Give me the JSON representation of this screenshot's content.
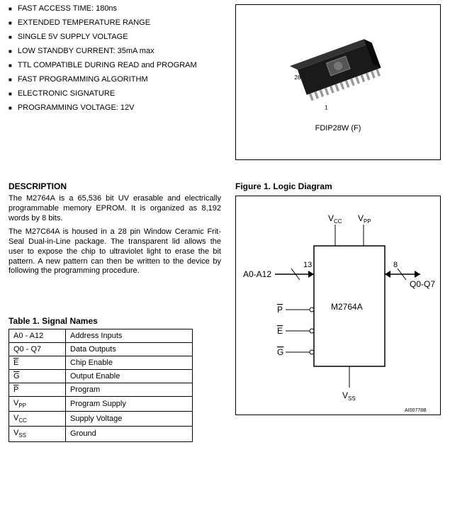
{
  "features": [
    "FAST ACCESS TIME: 180ns",
    "EXTENDED TEMPERATURE RANGE",
    "SINGLE 5V SUPPLY VOLTAGE",
    "LOW STANDBY CURRENT: 35mA max",
    "TTL COMPATIBLE DURING READ and PROGRAM",
    "FAST PROGRAMMING ALGORITHM",
    "ELECTRONIC SIGNATURE",
    "PROGRAMMING VOLTAGE: 12V"
  ],
  "package": {
    "pin28_label": "28",
    "pin1_label": "1",
    "label": "FDIP28W  (F)"
  },
  "description": {
    "title": "DESCRIPTION",
    "para1": "The M2764A is a 65,536 bit UV erasable and electrically programmable memory EPROM. It is organized as 8,192 words by 8 bits.",
    "para2": "The M27C64A is housed in a 28 pin Window Ceramic Frit-Seal Dual-in-Line package. The transparent lid allows the user to expose the chip to ultraviolet light to erase the bit pattern. A new pattern can then be written to the device by following the programming procedure."
  },
  "figure1": {
    "caption": "Figure 1.  Logic Diagram",
    "vcc": "VCC",
    "vpp": "VPP",
    "vss": "VSS",
    "addr_label": "A0-A12",
    "addr_count": "13",
    "data_label": "Q0-Q7",
    "data_count": "8",
    "p_label": "P",
    "e_label": "E",
    "g_label": "G",
    "chip_label": "M2764A",
    "ref": "AI00778B"
  },
  "table1": {
    "caption": "Table 1.  Signal Names",
    "rows": [
      {
        "name": "A0 - A12",
        "overbar": false,
        "desc": "Address Inputs"
      },
      {
        "name": "Q0 - Q7",
        "overbar": false,
        "desc": "Data Outputs"
      },
      {
        "name": "E",
        "overbar": true,
        "desc": "Chip Enable"
      },
      {
        "name": "G",
        "overbar": true,
        "desc": "Output Enable"
      },
      {
        "name": "P",
        "overbar": true,
        "desc": "Program"
      },
      {
        "name": "VPP",
        "overbar": false,
        "sub": "PP",
        "base": "V",
        "desc": "Program Supply"
      },
      {
        "name": "VCC",
        "overbar": false,
        "sub": "CC",
        "base": "V",
        "desc": "Supply Voltage"
      },
      {
        "name": "VSS",
        "overbar": false,
        "sub": "SS",
        "base": "V",
        "desc": "Ground"
      }
    ]
  }
}
